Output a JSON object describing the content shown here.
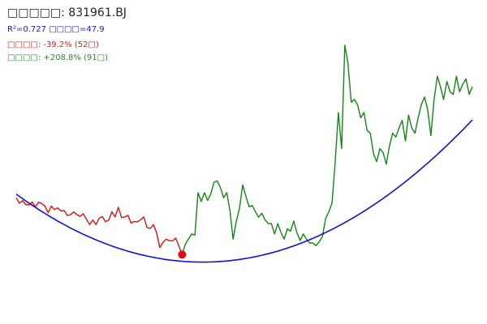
{
  "header": {
    "title": "□□□□□: 831961.BJ",
    "fit_r2": "R²=0.727",
    "fit_label": "□□□□=47.9",
    "decline_label": "□□□□: -39.2% (52□)",
    "rise_label": "□□□□: +208.8% (91□)"
  },
  "colors": {
    "decline": "#dd1111",
    "rise": "#118811",
    "fit": "#1111cc",
    "marker": "#dd1111"
  },
  "chart_data": {
    "type": "line",
    "title": "□□□□□: 831961.BJ",
    "xlabel": "",
    "ylabel": "",
    "grid": false,
    "legend": "none",
    "x_range": [
      0,
      143
    ],
    "y_range": [
      0,
      100
    ],
    "annotations": [
      "R²=0.727 □□□□=47.9",
      "□□□□: -39.2% (52□)",
      "□□□□: +208.8% (91□)"
    ],
    "trough_index": 52,
    "series": [
      {
        "role": "decline",
        "start_index": 0,
        "values": [
          36.0,
          33.9,
          34.9,
          33.4,
          33.2,
          34.4,
          32.4,
          34.3,
          33.8,
          32.8,
          30.2,
          32.8,
          31.4,
          32.1,
          30.9,
          31.1,
          29.2,
          29.4,
          30.5,
          29.5,
          28.8,
          29.8,
          27.7,
          25.6,
          27.4,
          25.6,
          28.1,
          28.7,
          26.7,
          27.4,
          30.6,
          28.6,
          32.3,
          28.4,
          28.5,
          29.2,
          26.2,
          26.8,
          26.7,
          27.5,
          28.6,
          24.5,
          24.1,
          25.6,
          22.5,
          16.7,
          18.7,
          20.0,
          19.4,
          19.3,
          20.4,
          17.3,
          14.0
        ]
      },
      {
        "role": "rise",
        "start_index": 52,
        "values": [
          14.0,
          18.0,
          20.0,
          22.0,
          21.5,
          38.0,
          34.5,
          38.0,
          35.0,
          37.5,
          42.0,
          42.5,
          40.0,
          36.0,
          38.0,
          31.0,
          20.0,
          27.0,
          32.0,
          41.0,
          36.5,
          32.5,
          33.0,
          30.5,
          28.5,
          30.0,
          27.5,
          26.0,
          26.0,
          22.0,
          26.0,
          22.5,
          20.0,
          24.0,
          23.0,
          27.0,
          22.5,
          19.5,
          22.0,
          20.0,
          18.5,
          18.5,
          17.5,
          19.0,
          21.0,
          28.0,
          30.5,
          34.0,
          50.0,
          69.0,
          55.0,
          95.0,
          88.0,
          73.0,
          74.0,
          72.0,
          67.0,
          69.0,
          62.0,
          61.0,
          53.0,
          50.0,
          55.0,
          53.5,
          49.0,
          56.0,
          61.0,
          59.5,
          63.0,
          66.0,
          58.0,
          68.0,
          63.0,
          61.0,
          67.0,
          72.0,
          75.0,
          70.0,
          60.0,
          74.0,
          83.0,
          79.0,
          74.0,
          81.0,
          77.0,
          76.0,
          83.0,
          77.0,
          80.0,
          82.0,
          76.0,
          79.0
        ]
      },
      {
        "role": "fit",
        "type": "quadratic",
        "coefficients": [
          37.4,
          -0.9,
          0.0077
        ]
      }
    ]
  }
}
